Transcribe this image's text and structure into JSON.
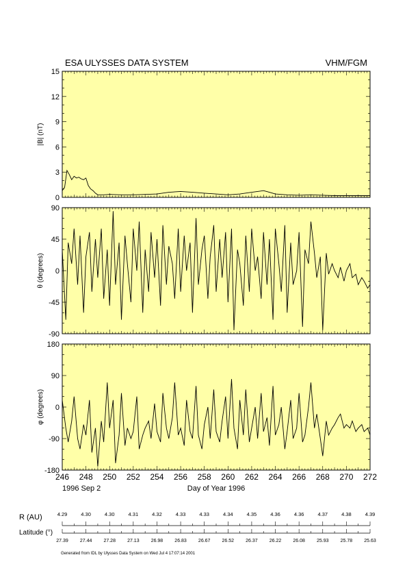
{
  "header": {
    "left_title": "ESA ULYSSES DATA SYSTEM",
    "right_title": "VHM/FGM"
  },
  "colors": {
    "panel_bg": "#ffffa8",
    "trace": "#000000"
  },
  "x_axis": {
    "label": "Day of Year 1996",
    "start_date": "1996 Sep  2",
    "tick_labels": [
      "246",
      "248",
      "250",
      "252",
      "254",
      "256",
      "258",
      "260",
      "262",
      "264",
      "266",
      "268",
      "270",
      "272"
    ],
    "range": [
      246,
      272
    ]
  },
  "chart_data": [
    {
      "type": "line",
      "name": "b-magnitude",
      "ylabel": "|B| (nT)",
      "ylim": [
        0,
        15
      ],
      "yticks": [
        0,
        3,
        6,
        9,
        12,
        15
      ],
      "ytick_labels": [
        "0",
        "3",
        "6",
        "9",
        "12",
        "15"
      ],
      "x": [
        246.0,
        246.2,
        246.4,
        246.6,
        246.8,
        247.0,
        247.2,
        247.4,
        247.6,
        247.8,
        248.0,
        248.2,
        248.4,
        248.6,
        248.8,
        249.0,
        249.5,
        250.0,
        251.0,
        252.0,
        253.0,
        254.0,
        255.0,
        256.0,
        257.0,
        258.0,
        259.0,
        260.0,
        261.0,
        262.0,
        262.5,
        263.0,
        263.5,
        264.0,
        265.0,
        266.0,
        267.0,
        268.0,
        269.0,
        270.0,
        271.0,
        272.0
      ],
      "values": [
        0.8,
        1.2,
        3.2,
        2.7,
        2.1,
        2.5,
        2.3,
        2.4,
        2.2,
        2.1,
        2.3,
        1.4,
        1.0,
        0.8,
        0.5,
        0.3,
        0.3,
        0.35,
        0.3,
        0.3,
        0.35,
        0.4,
        0.6,
        0.7,
        0.6,
        0.5,
        0.4,
        0.3,
        0.4,
        0.6,
        0.7,
        0.8,
        0.6,
        0.4,
        0.3,
        0.25,
        0.3,
        0.25,
        0.2,
        0.2,
        0.2,
        0.2
      ]
    },
    {
      "type": "line",
      "name": "theta",
      "ylabel": "θ (degrees)",
      "ylim": [
        -90,
        90
      ],
      "yticks": [
        -90,
        -45,
        0,
        45,
        90
      ],
      "ytick_labels": [
        "-90",
        "-45",
        "0",
        "45",
        "90"
      ],
      "x": [
        246.0,
        246.3,
        246.5,
        246.8,
        247.0,
        247.3,
        247.5,
        247.8,
        248.0,
        248.3,
        248.5,
        248.8,
        249.0,
        249.3,
        249.5,
        249.8,
        250.0,
        250.3,
        250.5,
        250.8,
        251.0,
        251.3,
        251.5,
        251.8,
        252.0,
        252.3,
        252.5,
        252.8,
        253.0,
        253.3,
        253.5,
        253.8,
        254.0,
        254.3,
        254.5,
        254.8,
        255.0,
        255.3,
        255.5,
        255.8,
        256.0,
        256.3,
        256.5,
        256.8,
        257.0,
        257.3,
        257.5,
        257.8,
        258.0,
        258.3,
        258.5,
        258.8,
        259.0,
        259.3,
        259.5,
        259.8,
        260.0,
        260.3,
        260.5,
        260.8,
        261.0,
        261.3,
        261.5,
        261.8,
        262.0,
        262.3,
        262.5,
        262.8,
        263.0,
        263.3,
        263.5,
        263.8,
        264.0,
        264.3,
        264.5,
        264.8,
        265.0,
        265.3,
        265.5,
        265.8,
        266.0,
        266.3,
        266.5,
        266.8,
        267.0,
        267.3,
        267.5,
        267.8,
        268.0,
        268.3,
        268.5,
        268.8,
        269.0,
        269.3,
        269.5,
        269.8,
        270.0,
        270.3,
        270.5,
        270.8,
        271.0,
        271.3,
        271.5,
        271.8,
        272.0
      ],
      "values": [
        30,
        -70,
        40,
        10,
        60,
        -20,
        50,
        -60,
        20,
        55,
        -30,
        45,
        -10,
        60,
        -40,
        30,
        -50,
        85,
        -20,
        40,
        -70,
        50,
        10,
        -45,
        60,
        0,
        70,
        -60,
        30,
        -30,
        55,
        -10,
        45,
        -50,
        65,
        -20,
        35,
        10,
        -40,
        60,
        -30,
        50,
        0,
        40,
        -60,
        75,
        -20,
        30,
        50,
        -40,
        20,
        65,
        -30,
        45,
        -10,
        55,
        -45,
        60,
        -85,
        30,
        10,
        -50,
        50,
        -30,
        60,
        0,
        20,
        -40,
        55,
        -20,
        45,
        -70,
        60,
        10,
        -30,
        65,
        -60,
        40,
        -20,
        0,
        55,
        -80,
        30,
        10,
        70,
        25,
        -10,
        20,
        -85,
        25,
        -5,
        10,
        0,
        -10,
        5,
        -15,
        0,
        10,
        -10,
        -5,
        -20,
        -10,
        -15,
        -25,
        -20
      ]
    },
    {
      "type": "line",
      "name": "phi",
      "ylabel": "φ (degrees)",
      "ylim": [
        -180,
        180
      ],
      "yticks": [
        -180,
        -90,
        0,
        90,
        180
      ],
      "ytick_labels": [
        "-180",
        "-90",
        "0",
        "90",
        "180"
      ],
      "x": [
        246.0,
        246.3,
        246.5,
        246.8,
        247.0,
        247.3,
        247.5,
        247.8,
        248.0,
        248.3,
        248.5,
        248.8,
        249.0,
        249.3,
        249.5,
        249.8,
        250.0,
        250.3,
        250.5,
        250.8,
        251.0,
        251.3,
        251.5,
        251.8,
        252.0,
        252.3,
        252.5,
        252.8,
        253.0,
        253.3,
        253.5,
        253.8,
        254.0,
        254.3,
        254.5,
        254.8,
        255.0,
        255.3,
        255.5,
        255.8,
        256.0,
        256.3,
        256.5,
        256.8,
        257.0,
        257.3,
        257.5,
        257.8,
        258.0,
        258.3,
        258.5,
        258.8,
        259.0,
        259.3,
        259.5,
        259.8,
        260.0,
        260.3,
        260.5,
        260.8,
        261.0,
        261.3,
        261.5,
        261.8,
        262.0,
        262.3,
        262.5,
        262.8,
        263.0,
        263.3,
        263.5,
        263.8,
        264.0,
        264.3,
        264.5,
        264.8,
        265.0,
        265.3,
        265.5,
        265.8,
        266.0,
        266.3,
        266.5,
        266.8,
        267.0,
        267.3,
        267.5,
        267.8,
        268.0,
        268.3,
        268.5,
        268.8,
        269.0,
        269.3,
        269.5,
        269.8,
        270.0,
        270.3,
        270.5,
        270.8,
        271.0,
        271.3,
        271.5,
        271.8,
        272.0
      ],
      "values": [
        20,
        -60,
        -100,
        -40,
        30,
        -90,
        -120,
        -50,
        -80,
        20,
        -130,
        -60,
        -170,
        -40,
        -100,
        70,
        -60,
        20,
        -160,
        -80,
        40,
        -110,
        -60,
        -90,
        -70,
        30,
        -120,
        -80,
        -60,
        -40,
        -90,
        10,
        -70,
        -100,
        40,
        -60,
        -90,
        -30,
        70,
        -80,
        -60,
        -110,
        20,
        -70,
        -90,
        60,
        -80,
        -120,
        -50,
        0,
        -90,
        50,
        -70,
        -100,
        -40,
        30,
        -90,
        80,
        -60,
        -120,
        20,
        -80,
        50,
        -100,
        -60,
        0,
        -90,
        40,
        -70,
        -30,
        -110,
        60,
        -80,
        -50,
        0,
        -120,
        -70,
        20,
        -90,
        -60,
        40,
        -100,
        -80,
        0,
        70,
        -60,
        -20,
        -90,
        -140,
        -40,
        -80,
        -60,
        -50,
        -30,
        -20,
        -60,
        -50,
        -60,
        -40,
        -70,
        -60,
        -50,
        -70,
        -60,
        -80
      ]
    }
  ],
  "ephemeris": {
    "r_label": "R (AU)",
    "lat_label": "Latitude (°)",
    "r_values": [
      "4.29",
      "4.30",
      "4.30",
      "4.31",
      "4.32",
      "4.33",
      "4.33",
      "4.34",
      "4.35",
      "4.36",
      "4.36",
      "4.37",
      "4.38",
      "4.39"
    ],
    "lat_values": [
      "27.39",
      "27.44",
      "27.28",
      "27.13",
      "26.98",
      "26.83",
      "26.67",
      "26.52",
      "26.37",
      "26.22",
      "26.08",
      "25.93",
      "25.78",
      "25.63"
    ]
  },
  "footer": {
    "text": "Generated from IDL by Ulysses Data System on Wed Jul  4 17:07:14 2001"
  }
}
